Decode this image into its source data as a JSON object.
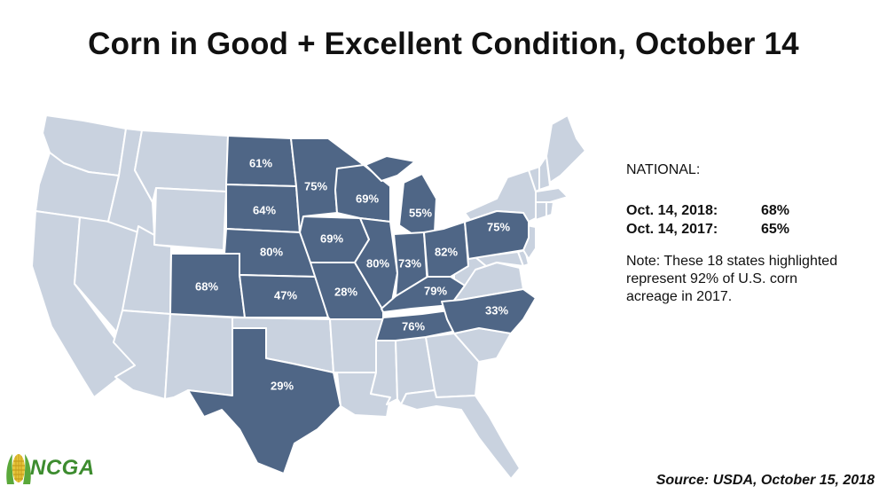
{
  "title": "Corn in Good + Excellent Condition, October 14",
  "colors": {
    "highlighted": "#4f6686",
    "other": "#c9d2df",
    "logo_green": "#3d8c2f"
  },
  "states": [
    {
      "id": "ND",
      "value": "61%"
    },
    {
      "id": "SD",
      "value": "64%"
    },
    {
      "id": "NE",
      "value": "80%"
    },
    {
      "id": "KS",
      "value": "47%"
    },
    {
      "id": "CO",
      "value": "68%"
    },
    {
      "id": "TX",
      "value": "29%"
    },
    {
      "id": "MN",
      "value": "75%"
    },
    {
      "id": "IA",
      "value": "69%"
    },
    {
      "id": "MO",
      "value": "28%"
    },
    {
      "id": "WI",
      "value": "69%"
    },
    {
      "id": "IL",
      "value": "80%"
    },
    {
      "id": "MI",
      "value": "55%"
    },
    {
      "id": "IN",
      "value": "73%"
    },
    {
      "id": "OH",
      "value": "82%"
    },
    {
      "id": "KY",
      "value": "79%"
    },
    {
      "id": "TN",
      "value": "76%"
    },
    {
      "id": "PA",
      "value": "75%"
    },
    {
      "id": "NC",
      "value": "33%"
    }
  ],
  "sidebar": {
    "national_label": "NATIONAL:",
    "rows": [
      {
        "label": "Oct. 14, 2018:",
        "value": "68%"
      },
      {
        "label": "Oct. 14, 2017:",
        "value": "65%"
      }
    ],
    "note": "Note: These 18 states highlighted represent 92% of U.S. corn acreage in 2017."
  },
  "logo": {
    "text": "NCGA",
    "icon": "corn-ear-icon"
  },
  "source": "Source: USDA, October 15, 2018"
}
